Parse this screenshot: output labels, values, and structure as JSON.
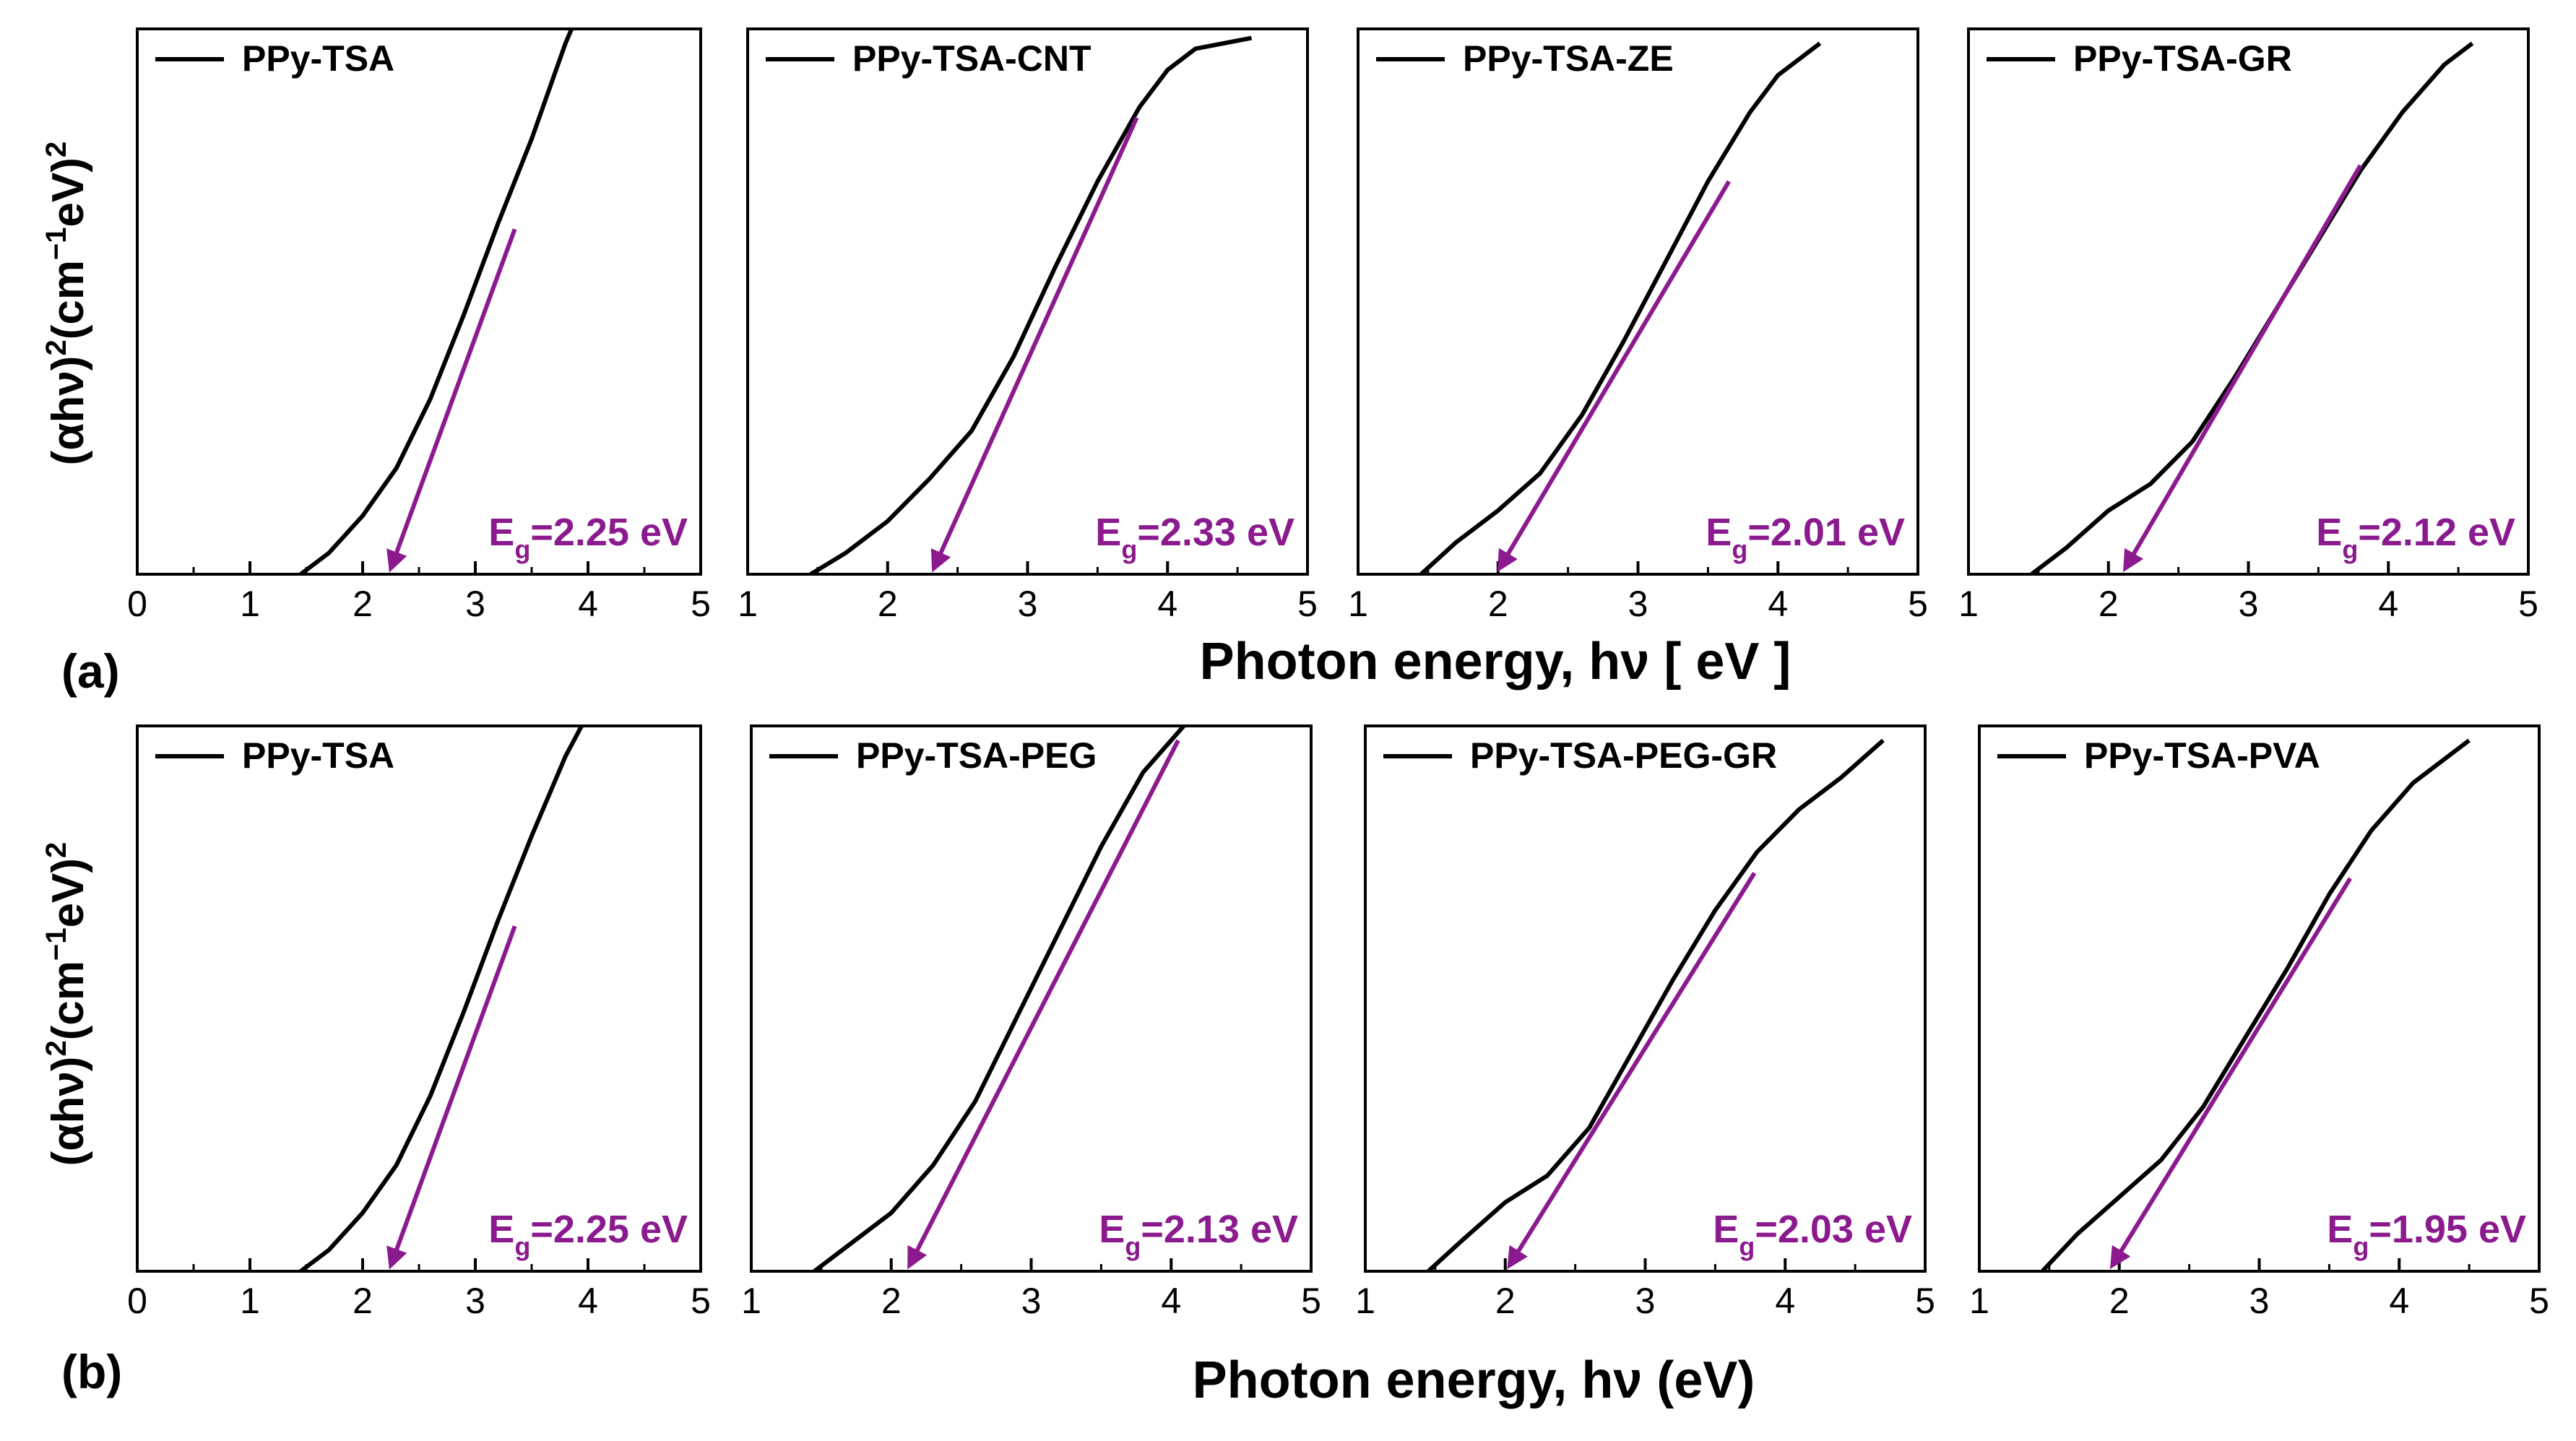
{
  "figure": {
    "row_a": {
      "label": "(a)",
      "xlabel": "Photon energy, hν [ eV ]",
      "ylabel_main": "(αhν)",
      "ylabel_sup1": "2",
      "ylabel_unit": "(cm",
      "ylabel_sup2": "−1",
      "ylabel_unit2": "eV",
      "ylabel_close": ")",
      "ylabel_sup3": "2"
    },
    "row_b": {
      "label": "(b)",
      "xlabel": "Photon energy, hν (eV)",
      "ylabel_main": "(αhν)",
      "ylabel_sup1": "2",
      "ylabel_unit": "(cm",
      "ylabel_sup2": "−1",
      "ylabel_unit2": "eV)",
      "ylabel_close": "",
      "ylabel_sup3": "2"
    },
    "curve_color": "#000000",
    "fit_color": "#8B1A8E"
  },
  "chart_data": [
    {
      "type": "line",
      "row": "a",
      "panel": 1,
      "series": [
        {
          "name": "PPy-TSA",
          "x": [
            1.45,
            1.7,
            2.0,
            2.3,
            2.6,
            2.9,
            3.2,
            3.5,
            3.8,
            4.0
          ],
          "y": [
            0,
            0.04,
            0.11,
            0.2,
            0.33,
            0.49,
            0.66,
            0.82,
            1.0,
            1.1
          ]
        }
      ],
      "fit_line": {
        "x": [
          2.25,
          3.35
        ],
        "y": [
          0,
          0.65
        ]
      },
      "annotation": {
        "base": "E",
        "sub": "g",
        "rest": "=2.25 eV"
      },
      "xlim": [
        0,
        5
      ],
      "ylim": [
        0,
        1
      ],
      "xticks": [
        "0",
        "1",
        "2",
        "3",
        "4",
        "5"
      ]
    },
    {
      "type": "line",
      "row": "a",
      "panel": 2,
      "series": [
        {
          "name": "PPy-TSA-CNT",
          "x": [
            1.45,
            1.7,
            2.0,
            2.3,
            2.6,
            2.9,
            3.2,
            3.5,
            3.8,
            4.0,
            4.2,
            4.4,
            4.6
          ],
          "y": [
            0,
            0.04,
            0.1,
            0.18,
            0.27,
            0.41,
            0.58,
            0.74,
            0.88,
            0.95,
            0.99,
            1.0,
            1.01
          ]
        }
      ],
      "fit_line": {
        "x": [
          2.33,
          3.78
        ],
        "y": [
          0,
          0.86
        ]
      },
      "annotation": {
        "base": "E",
        "sub": "g",
        "rest": "=2.33 eV"
      },
      "xlim": [
        1,
        5
      ],
      "ylim": [
        0,
        1
      ],
      "xticks": [
        "1",
        "2",
        "3",
        "4",
        "5"
      ]
    },
    {
      "type": "line",
      "row": "a",
      "panel": 3,
      "series": [
        {
          "name": "PPy-TSA-ZE",
          "x": [
            1.45,
            1.7,
            2.0,
            2.3,
            2.6,
            2.9,
            3.2,
            3.5,
            3.8,
            4.0,
            4.3
          ],
          "y": [
            0,
            0.06,
            0.12,
            0.19,
            0.3,
            0.44,
            0.59,
            0.74,
            0.87,
            0.94,
            1.0
          ]
        }
      ],
      "fit_line": {
        "x": [
          2.01,
          3.65
        ],
        "y": [
          0,
          0.74
        ]
      },
      "annotation": {
        "base": "E",
        "sub": "g",
        "rest": "=2.01 eV"
      },
      "xlim": [
        1,
        5
      ],
      "ylim": [
        0,
        1
      ],
      "xticks": [
        "1",
        "2",
        "3",
        "4",
        "5"
      ]
    },
    {
      "type": "line",
      "row": "a",
      "panel": 4,
      "series": [
        {
          "name": "PPy-TSA-GR",
          "x": [
            1.45,
            1.7,
            2.0,
            2.3,
            2.6,
            2.9,
            3.2,
            3.5,
            3.8,
            4.1,
            4.4,
            4.6
          ],
          "y": [
            0,
            0.05,
            0.12,
            0.17,
            0.25,
            0.37,
            0.5,
            0.63,
            0.76,
            0.87,
            0.96,
            1.0
          ]
        }
      ],
      "fit_line": {
        "x": [
          2.12,
          3.8
        ],
        "y": [
          0,
          0.77
        ]
      },
      "annotation": {
        "base": "E",
        "sub": "g",
        "rest": "=2.12 eV"
      },
      "xlim": [
        1,
        5
      ],
      "ylim": [
        0,
        1
      ],
      "xticks": [
        "1",
        "2",
        "3",
        "4",
        "5"
      ]
    },
    {
      "type": "line",
      "row": "b",
      "panel": 1,
      "series": [
        {
          "name": "PPy-TSA",
          "x": [
            1.45,
            1.7,
            2.0,
            2.3,
            2.6,
            2.9,
            3.2,
            3.5,
            3.8,
            4.0
          ],
          "y": [
            0,
            0.04,
            0.11,
            0.2,
            0.33,
            0.49,
            0.66,
            0.82,
            0.97,
            1.05
          ]
        }
      ],
      "fit_line": {
        "x": [
          2.25,
          3.35
        ],
        "y": [
          0,
          0.65
        ]
      },
      "annotation": {
        "base": "E",
        "sub": "g",
        "rest": "=2.25 eV"
      },
      "xlim": [
        0,
        5
      ],
      "ylim": [
        0,
        1
      ],
      "xticks": [
        "0",
        "1",
        "2",
        "3",
        "4",
        "5"
      ]
    },
    {
      "type": "line",
      "row": "b",
      "panel": 2,
      "series": [
        {
          "name": "PPy-TSA-PEG",
          "x": [
            1.45,
            1.7,
            2.0,
            2.3,
            2.6,
            2.9,
            3.2,
            3.5,
            3.8,
            4.1
          ],
          "y": [
            0,
            0.05,
            0.11,
            0.2,
            0.32,
            0.48,
            0.64,
            0.8,
            0.94,
            1.03
          ]
        }
      ],
      "fit_line": {
        "x": [
          2.13,
          4.05
        ],
        "y": [
          0,
          1.0
        ]
      },
      "annotation": {
        "base": "E",
        "sub": "g",
        "rest": "=2.13 eV"
      },
      "xlim": [
        1,
        5
      ],
      "ylim": [
        0,
        1
      ],
      "xticks": [
        "1",
        "2",
        "3",
        "4",
        "5"
      ]
    },
    {
      "type": "line",
      "row": "b",
      "panel": 3,
      "series": [
        {
          "name": "PPy-TSA-PEG-GR",
          "x": [
            1.45,
            1.7,
            2.0,
            2.3,
            2.6,
            2.9,
            3.2,
            3.5,
            3.8,
            4.1,
            4.4,
            4.7
          ],
          "y": [
            0,
            0.06,
            0.13,
            0.18,
            0.27,
            0.41,
            0.55,
            0.68,
            0.79,
            0.87,
            0.93,
            1.0
          ]
        }
      ],
      "fit_line": {
        "x": [
          2.03,
          3.78
        ],
        "y": [
          0,
          0.75
        ]
      },
      "annotation": {
        "base": "E",
        "sub": "g",
        "rest": "=2.03 eV"
      },
      "xlim": [
        1,
        5
      ],
      "ylim": [
        0,
        1
      ],
      "xticks": [
        "1",
        "2",
        "3",
        "4",
        "5"
      ]
    },
    {
      "type": "line",
      "row": "b",
      "panel": 4,
      "series": [
        {
          "name": "PPy-TSA-PVA",
          "x": [
            1.45,
            1.7,
            2.0,
            2.3,
            2.6,
            2.9,
            3.2,
            3.5,
            3.8,
            4.1,
            4.5
          ],
          "y": [
            0,
            0.07,
            0.14,
            0.21,
            0.31,
            0.44,
            0.57,
            0.71,
            0.83,
            0.92,
            1.0
          ]
        }
      ],
      "fit_line": {
        "x": [
          1.95,
          3.65
        ],
        "y": [
          0,
          0.74
        ]
      },
      "annotation": {
        "base": "E",
        "sub": "g",
        "rest": "=1.95 eV"
      },
      "xlim": [
        1,
        5
      ],
      "ylim": [
        0,
        1
      ],
      "xticks": [
        "1",
        "2",
        "3",
        "4",
        "5"
      ]
    }
  ]
}
